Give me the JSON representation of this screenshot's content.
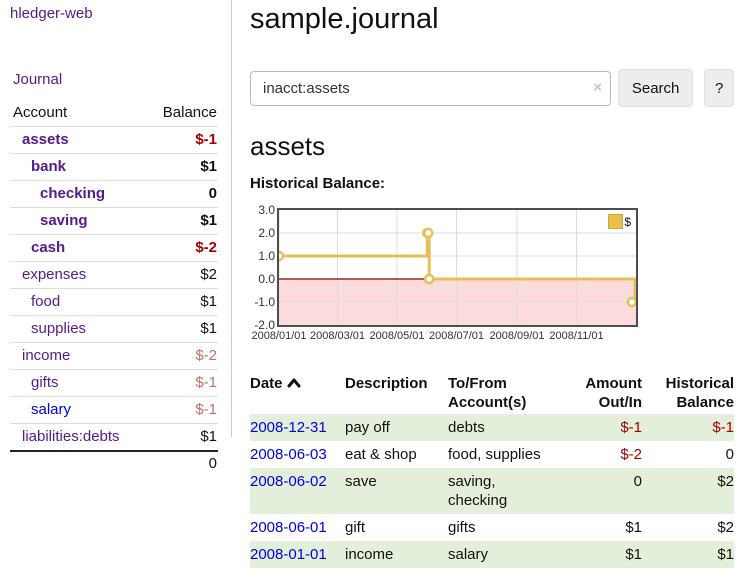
{
  "app": {
    "title": "hledger-web",
    "nav_journal": "Journal"
  },
  "sidebar": {
    "header": {
      "account": "Account",
      "balance": "Balance"
    },
    "accounts": [
      {
        "label": "assets",
        "indent": 1,
        "bold": true,
        "link": "purple",
        "balance": "$-1",
        "balance_style": "neg-dark"
      },
      {
        "label": "bank",
        "indent": 2,
        "bold": true,
        "link": "purple",
        "balance": "$1",
        "balance_style": "pos"
      },
      {
        "label": "checking",
        "indent": 3,
        "bold": true,
        "link": "purple",
        "balance": "0",
        "balance_style": "pos"
      },
      {
        "label": "saving",
        "indent": 3,
        "bold": true,
        "link": "purple",
        "balance": "$1",
        "balance_style": "pos"
      },
      {
        "label": "cash",
        "indent": 2,
        "bold": true,
        "link": "purple",
        "balance": "$-2",
        "balance_style": "neg-dark"
      },
      {
        "label": "expenses",
        "indent": 1,
        "bold": false,
        "link": "purple",
        "balance": "$2",
        "balance_style": "pos"
      },
      {
        "label": "food",
        "indent": 2,
        "bold": false,
        "link": "purple",
        "balance": "$1",
        "balance_style": "pos"
      },
      {
        "label": "supplies",
        "indent": 2,
        "bold": false,
        "link": "purple",
        "balance": "$1",
        "balance_style": "pos"
      },
      {
        "label": "income",
        "indent": 1,
        "bold": false,
        "link": "purple",
        "balance": "$-2",
        "balance_style": "neg-rosy"
      },
      {
        "label": "gifts",
        "indent": 2,
        "bold": false,
        "link": "purple",
        "balance": "$-1",
        "balance_style": "neg-rosy"
      },
      {
        "label": "salary",
        "indent": 2,
        "bold": false,
        "link": "blue",
        "balance": "$-1",
        "balance_style": "neg-rosy"
      },
      {
        "label": "liabilities:debts",
        "indent": 1,
        "bold": false,
        "link": "purple",
        "balance": "$1",
        "balance_style": "pos"
      }
    ],
    "total": "0"
  },
  "header": {
    "title": "sample.journal",
    "search_value": "inacct:assets",
    "clear_icon": "×",
    "search_button": "Search",
    "help_button": "?"
  },
  "account_page": {
    "heading": "assets",
    "chart_label": "Historical Balance:"
  },
  "chart_data": {
    "type": "line",
    "title": "Historical Balance",
    "step": true,
    "legend": "$",
    "legend_position": "top-right",
    "grid": true,
    "x_range": [
      "2008-01-01",
      "2009-01-01"
    ],
    "ylim": [
      -2.0,
      3.0
    ],
    "y_ticks": [
      3.0,
      2.0,
      1.0,
      0.0,
      -1.0,
      -2.0
    ],
    "y_tick_labels": [
      "3.0",
      "2.0",
      "1.0",
      "0.0",
      "-1.0",
      "-2.0"
    ],
    "x_ticks": [
      "2008-01-01",
      "2008-03-01",
      "2008-05-01",
      "2008-07-01",
      "2008-09-01",
      "2008-11-01"
    ],
    "x_tick_labels": [
      "2008/01/01",
      "2008/03/01",
      "2008/05/01",
      "2008/07/01",
      "2008/09/01",
      "2008/11/01"
    ],
    "series": [
      {
        "name": "$",
        "points": [
          [
            "2008-01-01",
            1
          ],
          [
            "2008-06-01",
            2
          ],
          [
            "2008-06-02",
            2
          ],
          [
            "2008-06-03",
            0
          ],
          [
            "2008-12-31",
            -1
          ]
        ]
      }
    ],
    "colors": {
      "line": "#e7bf57",
      "marker_fill": "#ffffff",
      "negative_region": "#fbdbdb",
      "zero_line": "#8b0000",
      "gridline": "#dcdcdc",
      "border": "#4d4d4d"
    }
  },
  "register": {
    "headers": {
      "date": "Date",
      "description": "Description",
      "accounts": "To/From Account(s)",
      "amount": "Amount Out/In",
      "balance": "Historical Balance"
    },
    "rows": [
      {
        "date": "2008-12-31",
        "description": "pay off",
        "accounts": "debts",
        "amount": "$-1",
        "amount_neg": true,
        "balance": "$-1",
        "balance_neg": true
      },
      {
        "date": "2008-06-03",
        "description": "eat & shop",
        "accounts": "food, supplies",
        "amount": "$-2",
        "amount_neg": true,
        "balance": "0",
        "balance_neg": false
      },
      {
        "date": "2008-06-02",
        "description": "save",
        "accounts": "saving, checking",
        "amount": "0",
        "amount_neg": false,
        "balance": "$2",
        "balance_neg": false
      },
      {
        "date": "2008-06-01",
        "description": "gift",
        "accounts": "gifts",
        "amount": "$1",
        "amount_neg": false,
        "balance": "$2",
        "balance_neg": false
      },
      {
        "date": "2008-01-01",
        "description": "income",
        "accounts": "salary",
        "amount": "$1",
        "amount_neg": false,
        "balance": "$1",
        "balance_neg": false
      }
    ]
  }
}
